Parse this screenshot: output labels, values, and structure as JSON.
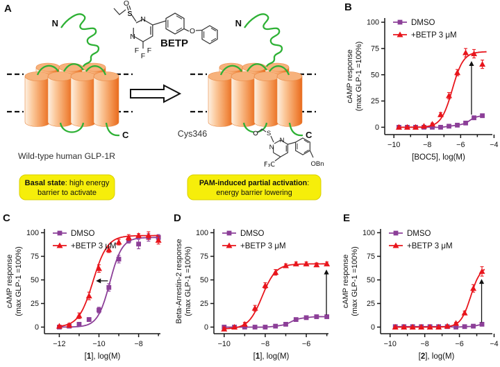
{
  "panel_a": {
    "label": "A",
    "betp_label": "BETP",
    "atoms": {
      "o1": "O",
      "s1": "S",
      "n1": "N",
      "n2": "N",
      "f1": "F",
      "f2": "F",
      "f3": "F",
      "o2": "O"
    },
    "mol2": {
      "s": "S",
      "n1": "N",
      "n2": "N",
      "f3c": "F₃C",
      "obn": "OBn"
    },
    "n_term": "N",
    "c_term": "C",
    "cys_label": "Cys346",
    "caption_left": "Wild-type human GLP-1R",
    "box_left": {
      "bold": "Basal state",
      "rest": ": high energy",
      "line2": "barrier to activate"
    },
    "box_right": {
      "bold": "PAM-induced partial activation",
      "rest": ":",
      "line2": "energy barrier lowering"
    }
  },
  "colors": {
    "dmso": "#8c3f98",
    "betp": "#e8151c",
    "green": "#2eb135",
    "yellow": "#f6ee0a",
    "axis": "#161616",
    "orange_edge": "#e8853f"
  },
  "chart_data": [
    {
      "panel": "B",
      "panel_label": "B",
      "type": "scatter",
      "ylabel": [
        "cAMP response",
        "(max GLP-1 =100%)"
      ],
      "xlabel_parts": [
        {
          "t": "[BOC5], log(M)",
          "b": false
        }
      ],
      "xlim": [
        -10.55,
        -4.1
      ],
      "ylim": [
        -7,
        104
      ],
      "xticks": [
        -10,
        -8,
        -6,
        -4
      ],
      "xticks_minor": [
        -9,
        -7,
        -5
      ],
      "yticks": [
        0,
        25,
        50,
        75,
        100
      ],
      "legend": [
        "DMSO",
        "+BETP 3 μM"
      ],
      "series": [
        {
          "name": "DMSO",
          "color_key": "dmso",
          "marker": "square",
          "x": [
            -9.7,
            -9.2,
            -8.7,
            -8.2,
            -7.7,
            -7.2,
            -6.7,
            -6.2,
            -5.7,
            -5.2,
            -4.7
          ],
          "y": [
            0,
            0,
            0,
            0,
            0,
            0,
            1,
            2,
            4,
            9,
            11
          ],
          "err": [
            0,
            0,
            0,
            0,
            0,
            0,
            0,
            0,
            1,
            1.5,
            1.5
          ]
        },
        {
          "name": "+BETP 3 μM",
          "color_key": "betp",
          "marker": "triangle",
          "x": [
            -9.7,
            -9.2,
            -8.7,
            -8.2,
            -7.7,
            -7.2,
            -6.7,
            -6.2,
            -5.7,
            -5.2,
            -4.7
          ],
          "y": [
            0,
            0,
            0,
            1,
            3,
            12,
            30,
            52,
            71,
            70,
            60
          ],
          "err": [
            0,
            0,
            0,
            0,
            1,
            2,
            3,
            3,
            4,
            4,
            4
          ],
          "fit": {
            "bottom": 0,
            "top": 72,
            "logec50": -6.5,
            "hill": 1.3,
            "x0": -9.7,
            "x1": -4.45
          }
        }
      ],
      "arrow": {
        "dir": "up",
        "x": -5.35,
        "y1": 12,
        "y2": 63
      }
    },
    {
      "panel": "C",
      "panel_label": "C",
      "type": "scatter",
      "ylabel": [
        "cAMP response",
        "(max GLP-1 =100%)"
      ],
      "xlabel_parts": [
        {
          "t": "[",
          "b": false
        },
        {
          "t": "1",
          "b": true
        },
        {
          "t": "], log(M)",
          "b": false
        }
      ],
      "xlim": [
        -12.75,
        -6.9
      ],
      "ylim": [
        -7,
        104
      ],
      "xticks": [
        -12,
        -10,
        -8
      ],
      "xticks_minor": [
        -11,
        -9,
        -7
      ],
      "yticks": [
        0,
        25,
        50,
        75,
        100
      ],
      "legend": [
        "DMSO",
        "+BETP 3 μM"
      ],
      "series": [
        {
          "name": "DMSO",
          "color_key": "dmso",
          "marker": "square",
          "x": [
            -12,
            -11.5,
            -11,
            -10.5,
            -10,
            -9.5,
            -9,
            -8.5,
            -8,
            -7.5,
            -7
          ],
          "y": [
            0,
            1,
            3,
            8,
            18,
            42,
            72,
            92,
            88,
            95,
            95
          ],
          "err": [
            0,
            1,
            2,
            2,
            3,
            4,
            4,
            3,
            5,
            4,
            3
          ],
          "fit": {
            "bottom": 0,
            "top": 95,
            "logec50": -9.45,
            "hill": 1.4,
            "x0": -12,
            "x1": -7
          }
        },
        {
          "name": "+BETP 3 μM",
          "color_key": "betp",
          "marker": "triangle",
          "x": [
            -12,
            -11.5,
            -11,
            -10.5,
            -10,
            -9.5,
            -9,
            -8.5,
            -8,
            -7.5,
            -7
          ],
          "y": [
            1,
            2,
            12,
            33,
            62,
            82,
            90,
            95,
            97,
            97,
            92
          ],
          "err": [
            1,
            2,
            3,
            4,
            4,
            3,
            3,
            3,
            2,
            4,
            4
          ],
          "fit": {
            "bottom": 0,
            "top": 97,
            "logec50": -10.3,
            "hill": 1.2,
            "x0": -12,
            "x1": -7
          }
        }
      ],
      "arrow": {
        "dir": "left",
        "y": 49,
        "x1": -9.55,
        "x2": -10.15
      }
    },
    {
      "panel": "D",
      "panel_label": "D",
      "type": "scatter",
      "ylabel": [
        "Beta-Arrestin-2 response",
        "(max GLP-1 =100%)"
      ],
      "xlabel_parts": [
        {
          "t": "[",
          "b": false
        },
        {
          "t": "1",
          "b": true
        },
        {
          "t": "], log(M)",
          "b": false
        }
      ],
      "xlim": [
        -10.5,
        -4.92
      ],
      "ylim": [
        -7,
        104
      ],
      "xticks": [
        -10,
        -8,
        -6
      ],
      "xticks_minor": [
        -9,
        -7,
        -5
      ],
      "yticks": [
        0,
        25,
        50,
        75,
        100
      ],
      "legend": [
        "DMSO",
        "+BETP 3 μM"
      ],
      "series": [
        {
          "name": "DMSO",
          "color_key": "dmso",
          "marker": "square",
          "x": [
            -10,
            -9.5,
            -9,
            -8.5,
            -8,
            -7.5,
            -7,
            -6.5,
            -6,
            -5.5,
            -5
          ],
          "y": [
            0,
            0,
            0,
            0,
            0,
            1,
            3,
            8,
            10,
            11,
            11
          ],
          "err": [
            0,
            0,
            0,
            0,
            0,
            0,
            0,
            1,
            1,
            1,
            1
          ]
        },
        {
          "name": "+BETP 3 μM",
          "color_key": "betp",
          "marker": "triangle",
          "x": [
            -10,
            -9.5,
            -9,
            -8.5,
            -8,
            -7.5,
            -7,
            -6.5,
            -6,
            -5.5,
            -5
          ],
          "y": [
            -2,
            0,
            3,
            20,
            44,
            58,
            65,
            67,
            67,
            66,
            67
          ],
          "err": [
            2,
            0,
            2,
            3,
            3,
            3,
            2,
            2,
            2,
            2,
            2
          ],
          "fit": {
            "bottom": -2,
            "top": 67,
            "logec50": -8.15,
            "hill": 1.3,
            "x0": -10,
            "x1": -5
          }
        }
      ],
      "arrow": {
        "dir": "up",
        "x": -5.02,
        "y1": 13,
        "y2": 61
      }
    },
    {
      "panel": "E",
      "panel_label": "E",
      "type": "scatter",
      "ylabel": [
        "cAMP response",
        "(max GLP-1 =100%)"
      ],
      "xlabel_parts": [
        {
          "t": "[",
          "b": false
        },
        {
          "t": "2",
          "b": true
        },
        {
          "t": "], log(M)",
          "b": false
        }
      ],
      "xlim": [
        -10.55,
        -4.1
      ],
      "ylim": [
        -7,
        104
      ],
      "xticks": [
        -10,
        -8,
        -6,
        -4
      ],
      "xticks_minor": [
        -9,
        -7,
        -5
      ],
      "yticks": [
        0,
        25,
        50,
        75,
        100
      ],
      "legend": [
        "DMSO",
        "+BETP 3 μM"
      ],
      "series": [
        {
          "name": "DMSO",
          "color_key": "dmso",
          "marker": "square",
          "x": [
            -9.7,
            -9.2,
            -8.7,
            -8.2,
            -7.7,
            -7.2,
            -6.7,
            -6.2,
            -5.7,
            -5.2,
            -4.7
          ],
          "y": [
            0.5,
            0.5,
            0.5,
            0.5,
            0.5,
            0.5,
            0.5,
            0,
            0.5,
            1,
            3
          ],
          "err": [
            0,
            0,
            0,
            0,
            0,
            0,
            0,
            0,
            0,
            0,
            1
          ]
        },
        {
          "name": "+BETP 3 μM",
          "color_key": "betp",
          "marker": "triangle",
          "x": [
            -9.7,
            -9.2,
            -8.7,
            -8.2,
            -7.7,
            -7.2,
            -6.7,
            -6.2,
            -5.7,
            -5.2,
            -4.7
          ],
          "y": [
            0,
            0,
            0,
            0,
            0,
            0,
            1,
            4,
            15,
            41,
            59
          ],
          "err": [
            0,
            0,
            0,
            0,
            0,
            0,
            0,
            1,
            2,
            4,
            5
          ],
          "fit": {
            "bottom": 0,
            "top": 65,
            "logec50": -5.35,
            "hill": 1.5,
            "x0": -9.7,
            "x1": -4.55
          }
        }
      ],
      "arrow": {
        "dir": "up",
        "x": -4.72,
        "y1": 5,
        "y2": 51
      }
    }
  ]
}
